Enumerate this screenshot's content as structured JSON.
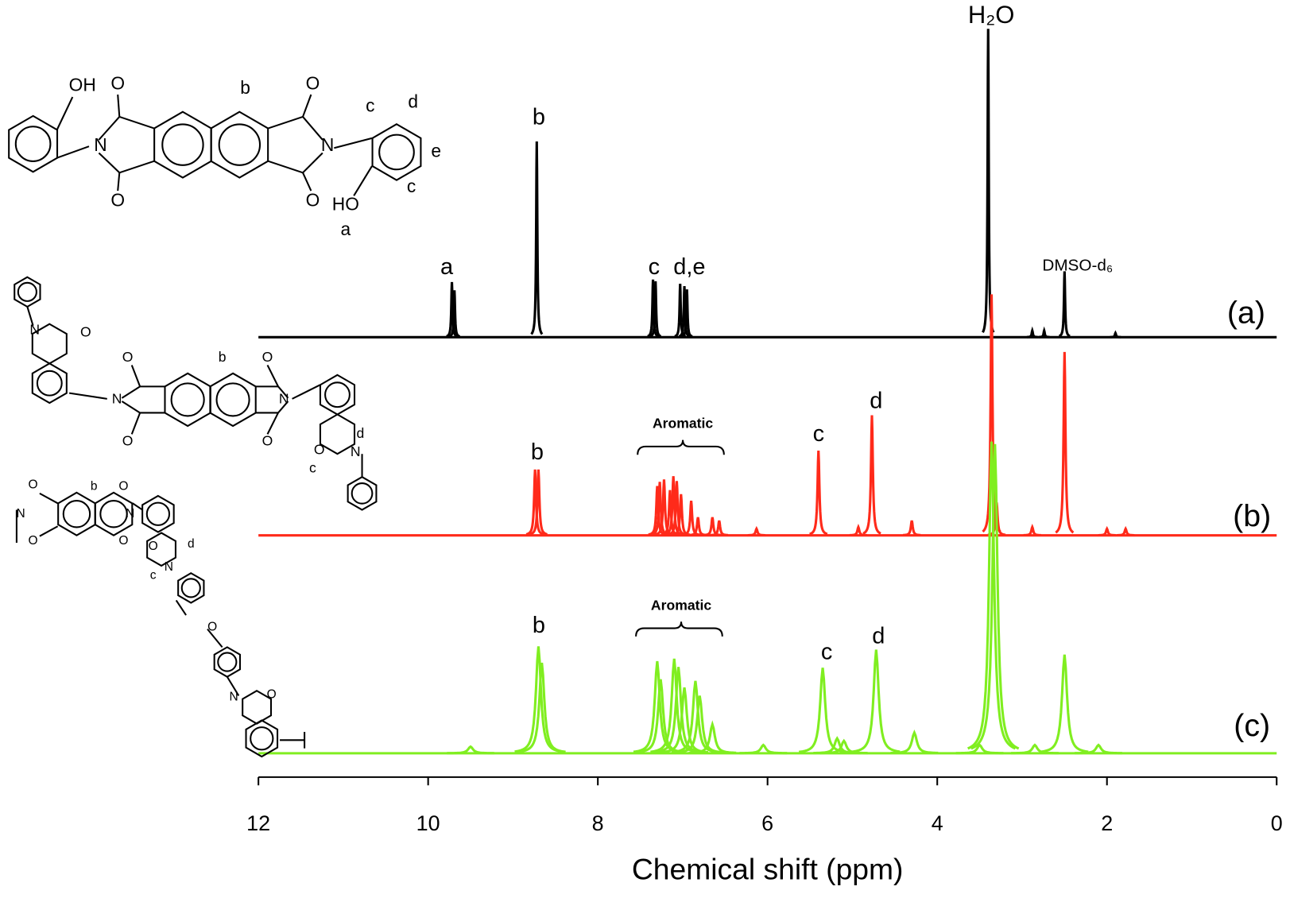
{
  "chart_data": {
    "type": "spectrum",
    "x_label": "Chemical shift (ppm)",
    "xlim": [
      12,
      0
    ],
    "xticks": [
      12,
      10,
      8,
      6,
      4,
      2,
      0
    ],
    "series": [
      {
        "name": "(a)",
        "color": "#000000",
        "x": [
          9.72,
          9.69,
          8.72,
          7.35,
          7.32,
          7.03,
          6.98,
          6.95,
          3.4,
          2.88,
          2.74,
          2.5,
          1.9
        ],
        "values": [
          67,
          57,
          238,
          70,
          68,
          65,
          62,
          58,
          375,
          8,
          8,
          80,
          5
        ],
        "peak_labels": [
          "a",
          "b",
          "c",
          "d,e",
          "H₂O",
          "DMSO-d₆"
        ]
      },
      {
        "name": "(b)",
        "color": "#ff2a1a",
        "x": [
          8.74,
          8.7,
          7.3,
          7.27,
          7.22,
          7.15,
          7.11,
          7.07,
          7.02,
          6.9,
          6.82,
          6.65,
          6.57,
          6.13,
          5.4,
          4.93,
          4.77,
          4.3,
          3.36,
          3.3,
          2.88,
          2.5,
          2.0,
          1.78
        ],
        "values": [
          80,
          80,
          60,
          65,
          68,
          55,
          72,
          66,
          50,
          42,
          22,
          22,
          18,
          8,
          103,
          10,
          146,
          18,
          293,
          40,
          10,
          223,
          8,
          8
        ],
        "peak_labels": [
          "b",
          "Aromatic",
          "c",
          "d"
        ]
      },
      {
        "name": "(c)",
        "color": "#80ee20",
        "x": [
          9.5,
          8.7,
          8.66,
          7.3,
          7.26,
          7.1,
          7.05,
          6.98,
          6.85,
          6.8,
          6.65,
          6.05,
          5.35,
          5.18,
          5.1,
          4.72,
          4.27,
          3.5,
          3.36,
          3.32,
          2.85,
          2.5,
          2.1
        ],
        "values": [
          8,
          130,
          110,
          112,
          90,
          115,
          105,
          80,
          88,
          70,
          35,
          10,
          104,
          18,
          15,
          126,
          25,
          10,
          379,
          376,
          10,
          120,
          10
        ],
        "peak_labels": [
          "b",
          "Aromatic",
          "c",
          "d"
        ]
      }
    ]
  },
  "structures": [
    {
      "labels": [
        "OH",
        "O",
        "O",
        "N",
        "b",
        "O",
        "O",
        "N",
        "c",
        "d",
        "e",
        "c",
        "HO",
        "a"
      ]
    },
    {
      "labels": [
        "N",
        "O",
        "O",
        "O",
        "N",
        "b",
        "O",
        "O",
        "N",
        "O",
        "N",
        "d",
        "c"
      ]
    },
    {
      "labels": [
        "O",
        "O",
        "N",
        "b",
        "O",
        "O",
        "N",
        "O",
        "N",
        "d",
        "c",
        "O",
        "N",
        "O"
      ]
    }
  ]
}
